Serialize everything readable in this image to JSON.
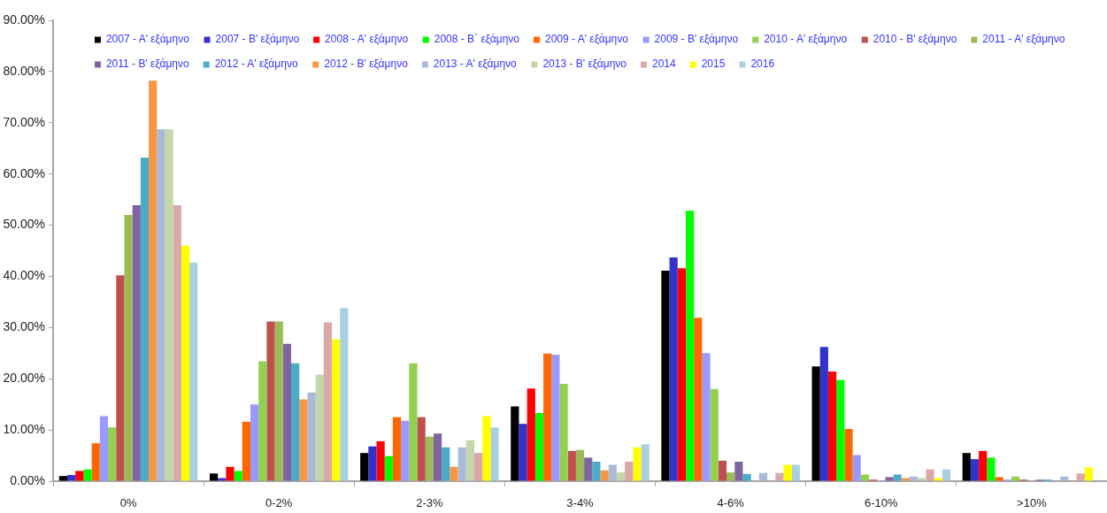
{
  "chart_data": {
    "type": "bar",
    "categories": [
      "0%",
      "0-2%",
      "2-3%",
      "3-4%",
      "4-6%",
      "6-10%",
      ">10%"
    ],
    "series": [
      {
        "name": "2007 - A' εξάμηνο",
        "color": "#000000",
        "values": [
          1.0,
          1.5,
          5.5,
          14.6,
          41.1,
          22.4,
          5.5
        ]
      },
      {
        "name": "2007 - B' εξάμηνο",
        "color": "#3333cc",
        "values": [
          1.2,
          0.6,
          6.8,
          11.2,
          43.7,
          26.2,
          4.3
        ]
      },
      {
        "name": "2008 - A' εξάμηνο",
        "color": "#ff0000",
        "values": [
          2.0,
          2.8,
          7.8,
          18.1,
          41.6,
          21.4,
          5.9
        ]
      },
      {
        "name": "2008 - B΄ εξάμηνο",
        "color": "#00ff00",
        "values": [
          2.3,
          2.0,
          4.9,
          13.3,
          52.8,
          19.8,
          4.6
        ]
      },
      {
        "name": "2009 - A' εξάμηνο",
        "color": "#ff6600",
        "values": [
          7.4,
          11.6,
          12.5,
          24.9,
          31.9,
          10.2,
          0.8
        ]
      },
      {
        "name": "2009 - B' εξάμηνο",
        "color": "#9999ff",
        "values": [
          12.7,
          15.0,
          11.8,
          24.7,
          25.0,
          5.1,
          0.3
        ]
      },
      {
        "name": "2010 - A' εξάμηνο",
        "color": "#92d050",
        "values": [
          10.5,
          23.4,
          23.0,
          19.0,
          18.0,
          1.3,
          0.9
        ]
      },
      {
        "name": "2010 - B' εξάμηνο",
        "color": "#c0504d",
        "values": [
          40.2,
          31.2,
          12.5,
          5.9,
          4.0,
          0.3,
          0.3
        ]
      },
      {
        "name": "2011 - A' εξάμηνο",
        "color": "#9bbb59",
        "values": [
          52.0,
          31.2,
          8.7,
          6.1,
          1.7,
          0,
          0
        ]
      },
      {
        "name": "2011 - B' εξάμηνο",
        "color": "#8064a2",
        "values": [
          53.9,
          26.8,
          9.3,
          4.6,
          3.8,
          0.8,
          0.3
        ]
      },
      {
        "name": "2012 - A' εξάμηνο",
        "color": "#4bacc6",
        "values": [
          63.2,
          23.0,
          6.6,
          3.8,
          1.4,
          1.3,
          0.3
        ]
      },
      {
        "name": "2012 - B' εξάμηνο",
        "color": "#f79646",
        "values": [
          78.2,
          16.0,
          2.8,
          2.1,
          0,
          0.6,
          0
        ]
      },
      {
        "name": "2013 - A' εξάμηνο",
        "color": "#aab9d8",
        "values": [
          68.7,
          17.3,
          6.6,
          3.2,
          1.6,
          0.9,
          0.9
        ]
      },
      {
        "name": "2013 - B' εξάμηνο",
        "color": "#c4d7a8",
        "values": [
          68.7,
          20.8,
          8.0,
          1.7,
          0,
          0.6,
          0
        ]
      },
      {
        "name": "2014",
        "color": "#dba8a8",
        "values": [
          53.9,
          31.0,
          5.5,
          3.8,
          1.6,
          2.3,
          1.5
        ]
      },
      {
        "name": "2015",
        "color": "#ffff00",
        "values": [
          46.0,
          27.7,
          12.7,
          6.6,
          3.2,
          0.6,
          2.7
        ]
      },
      {
        "name": "2016",
        "color": "#aacfe0",
        "values": [
          42.7,
          33.8,
          10.5,
          7.2,
          3.2,
          2.3,
          null
        ]
      }
    ],
    "ylim": [
      0,
      90
    ],
    "yticks": [
      {
        "value": 0,
        "label": "0.00%"
      },
      {
        "value": 10,
        "label": "10.00%"
      },
      {
        "value": 20,
        "label": "20.00%"
      },
      {
        "value": 30,
        "label": "30.00%"
      },
      {
        "value": 40,
        "label": "40.00%"
      },
      {
        "value": 50,
        "label": "50.00%"
      },
      {
        "value": 60,
        "label": "60.00%"
      },
      {
        "value": 70,
        "label": "70.00%"
      },
      {
        "value": 80,
        "label": "80.00%"
      },
      {
        "value": 90,
        "label": "90.00%"
      }
    ],
    "legend": "top"
  }
}
